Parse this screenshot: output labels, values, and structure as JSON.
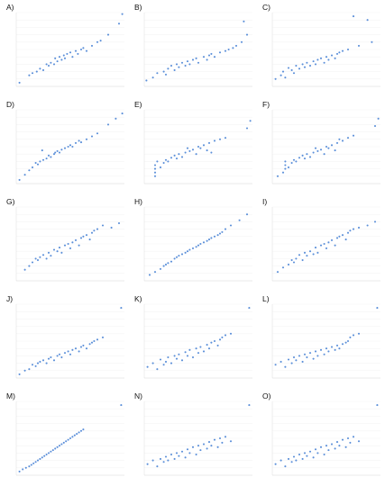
{
  "colors": {
    "point": "#5b8fd9",
    "grid": "#ececec"
  },
  "chart_data": [
    {
      "id": "A",
      "type": "scatter",
      "label": "A)",
      "xlabel": "",
      "ylabel": "",
      "grid": true,
      "xlim": [
        0,
        100
      ],
      "ylim": [
        0,
        100
      ],
      "x": [
        3,
        12,
        15,
        19,
        22,
        25,
        28,
        30,
        32,
        35,
        36,
        38,
        40,
        42,
        44,
        45,
        47,
        50,
        52,
        55,
        57,
        60,
        62,
        65,
        70,
        75,
        78,
        85,
        95,
        98
      ],
      "y": [
        5,
        15,
        18,
        20,
        24,
        22,
        30,
        28,
        32,
        30,
        38,
        34,
        40,
        36,
        42,
        38,
        44,
        46,
        40,
        48,
        44,
        50,
        52,
        48,
        55,
        60,
        62,
        70,
        85,
        98
      ]
    },
    {
      "id": "B",
      "type": "scatter",
      "label": "B)",
      "xlabel": "",
      "ylabel": "",
      "grid": true,
      "xlim": [
        0,
        100
      ],
      "ylim": [
        0,
        100
      ],
      "x": [
        2,
        8,
        12,
        18,
        20,
        22,
        25,
        28,
        30,
        32,
        35,
        38,
        40,
        42,
        45,
        48,
        50,
        55,
        58,
        60,
        62,
        65,
        70,
        75,
        78,
        82,
        85,
        90,
        92,
        95
      ],
      "y": [
        8,
        12,
        18,
        20,
        16,
        24,
        28,
        22,
        30,
        26,
        32,
        28,
        34,
        30,
        36,
        38,
        32,
        40,
        36,
        42,
        44,
        40,
        46,
        48,
        50,
        52,
        55,
        60,
        88,
        70
      ]
    },
    {
      "id": "C",
      "type": "scatter",
      "label": "C)",
      "xlabel": "",
      "ylabel": "",
      "grid": true,
      "xlim": [
        0,
        100
      ],
      "ylim": [
        0,
        100
      ],
      "x": [
        3,
        8,
        10,
        12,
        15,
        18,
        20,
        22,
        25,
        28,
        30,
        32,
        35,
        38,
        40,
        42,
        45,
        48,
        50,
        52,
        55,
        58,
        60,
        62,
        65,
        70,
        75,
        80,
        88,
        92
      ],
      "y": [
        10,
        15,
        20,
        12,
        25,
        22,
        18,
        28,
        24,
        30,
        26,
        32,
        28,
        34,
        30,
        36,
        38,
        32,
        40,
        36,
        42,
        38,
        44,
        46,
        48,
        50,
        95,
        55,
        90,
        60
      ]
    },
    {
      "id": "D",
      "type": "scatter",
      "label": "D)",
      "xlabel": "",
      "ylabel": "",
      "grid": true,
      "xlim": [
        0,
        100
      ],
      "ylim": [
        0,
        100
      ],
      "x": [
        3,
        8,
        12,
        15,
        18,
        20,
        22,
        24,
        25,
        28,
        30,
        32,
        35,
        36,
        38,
        40,
        42,
        45,
        48,
        50,
        52,
        55,
        58,
        60,
        65,
        70,
        75,
        85,
        92,
        98
      ],
      "y": [
        5,
        12,
        18,
        22,
        28,
        26,
        30,
        45,
        32,
        34,
        38,
        36,
        40,
        42,
        44,
        42,
        46,
        48,
        50,
        52,
        50,
        55,
        58,
        56,
        60,
        64,
        68,
        80,
        88,
        95
      ]
    },
    {
      "id": "E",
      "type": "scatter",
      "label": "E)",
      "xlabel": "",
      "ylabel": "",
      "grid": true,
      "xlim": [
        0,
        100
      ],
      "ylim": [
        0,
        100
      ],
      "x": [
        10,
        10,
        10,
        10,
        12,
        15,
        18,
        20,
        22,
        25,
        28,
        30,
        32,
        35,
        38,
        40,
        42,
        45,
        48,
        50,
        52,
        55,
        58,
        60,
        62,
        65,
        70,
        75,
        95,
        98
      ],
      "y": [
        10,
        15,
        20,
        25,
        30,
        22,
        28,
        32,
        30,
        35,
        38,
        34,
        40,
        36,
        42,
        48,
        44,
        46,
        40,
        50,
        48,
        52,
        45,
        55,
        42,
        58,
        60,
        62,
        75,
        85
      ]
    },
    {
      "id": "F",
      "type": "scatter",
      "label": "F)",
      "xlabel": "",
      "ylabel": "",
      "grid": true,
      "xlim": [
        0,
        100
      ],
      "ylim": [
        0,
        100
      ],
      "x": [
        5,
        10,
        12,
        12,
        12,
        15,
        18,
        20,
        22,
        25,
        28,
        30,
        32,
        35,
        38,
        40,
        42,
        45,
        48,
        50,
        52,
        55,
        58,
        60,
        62,
        65,
        70,
        75,
        95,
        98
      ],
      "y": [
        10,
        15,
        20,
        25,
        30,
        22,
        28,
        32,
        30,
        35,
        38,
        34,
        40,
        36,
        42,
        48,
        44,
        46,
        40,
        50,
        48,
        52,
        45,
        55,
        60,
        58,
        62,
        65,
        78,
        88
      ]
    },
    {
      "id": "G",
      "type": "scatter",
      "label": "G)",
      "xlabel": "",
      "ylabel": "",
      "grid": true,
      "xlim": [
        0,
        100
      ],
      "ylim": [
        0,
        100
      ],
      "x": [
        8,
        12,
        15,
        18,
        20,
        22,
        25,
        28,
        30,
        32,
        35,
        38,
        40,
        42,
        45,
        48,
        50,
        52,
        55,
        58,
        60,
        62,
        65,
        68,
        70,
        72,
        75,
        80,
        88,
        95
      ],
      "y": [
        15,
        20,
        25,
        30,
        28,
        32,
        35,
        30,
        38,
        34,
        42,
        40,
        45,
        38,
        48,
        50,
        44,
        52,
        55,
        48,
        58,
        60,
        62,
        56,
        65,
        68,
        70,
        75,
        72,
        78
      ]
    },
    {
      "id": "H",
      "type": "scatter",
      "label": "H)",
      "xlabel": "",
      "ylabel": "",
      "grid": true,
      "xlim": [
        0,
        100
      ],
      "ylim": [
        0,
        100
      ],
      "x": [
        5,
        10,
        15,
        18,
        20,
        22,
        25,
        28,
        30,
        32,
        35,
        38,
        40,
        42,
        45,
        48,
        50,
        52,
        55,
        58,
        60,
        62,
        65,
        68,
        70,
        72,
        75,
        80,
        88,
        95
      ],
      "y": [
        8,
        12,
        16,
        20,
        22,
        24,
        26,
        30,
        32,
        34,
        36,
        38,
        40,
        42,
        44,
        46,
        48,
        50,
        52,
        54,
        56,
        58,
        60,
        62,
        64,
        66,
        70,
        75,
        82,
        90
      ]
    },
    {
      "id": "I",
      "type": "scatter",
      "label": "I)",
      "xlabel": "",
      "ylabel": "",
      "grid": true,
      "xlim": [
        0,
        100
      ],
      "ylim": [
        0,
        100
      ],
      "x": [
        5,
        10,
        15,
        18,
        20,
        22,
        25,
        28,
        30,
        32,
        35,
        38,
        40,
        42,
        45,
        48,
        50,
        52,
        55,
        58,
        60,
        62,
        65,
        68,
        70,
        72,
        75,
        80,
        88,
        95
      ],
      "y": [
        12,
        18,
        22,
        28,
        25,
        30,
        35,
        28,
        38,
        34,
        40,
        36,
        45,
        38,
        48,
        50,
        44,
        52,
        55,
        48,
        58,
        60,
        62,
        56,
        65,
        68,
        70,
        72,
        75,
        80
      ]
    },
    {
      "id": "J",
      "type": "scatter",
      "label": "J)",
      "xlabel": "",
      "ylabel": "",
      "grid": true,
      "xlim": [
        0,
        100
      ],
      "ylim": [
        0,
        100
      ],
      "x": [
        3,
        8,
        12,
        15,
        18,
        20,
        22,
        25,
        28,
        30,
        32,
        35,
        38,
        40,
        42,
        45,
        48,
        50,
        52,
        55,
        58,
        60,
        62,
        65,
        68,
        70,
        72,
        75,
        80,
        97
      ],
      "y": [
        5,
        10,
        12,
        18,
        16,
        20,
        22,
        24,
        20,
        26,
        28,
        24,
        30,
        32,
        28,
        34,
        36,
        32,
        38,
        40,
        36,
        42,
        44,
        40,
        46,
        48,
        50,
        52,
        55,
        95
      ]
    },
    {
      "id": "K",
      "type": "scatter",
      "label": "K)",
      "xlabel": "",
      "ylabel": "",
      "grid": true,
      "xlim": [
        0,
        100
      ],
      "ylim": [
        0,
        100
      ],
      "x": [
        3,
        8,
        12,
        15,
        18,
        20,
        22,
        25,
        28,
        30,
        32,
        35,
        38,
        40,
        42,
        45,
        48,
        50,
        52,
        55,
        58,
        60,
        62,
        65,
        68,
        70,
        72,
        75,
        80,
        97
      ],
      "y": [
        15,
        20,
        12,
        25,
        18,
        22,
        28,
        20,
        30,
        26,
        32,
        24,
        35,
        30,
        38,
        28,
        40,
        34,
        42,
        36,
        45,
        40,
        48,
        50,
        44,
        52,
        55,
        58,
        60,
        95
      ]
    },
    {
      "id": "L",
      "type": "scatter",
      "label": "L)",
      "xlabel": "",
      "ylabel": "",
      "grid": true,
      "xlim": [
        0,
        100
      ],
      "ylim": [
        0,
        100
      ],
      "x": [
        3,
        8,
        12,
        15,
        18,
        20,
        22,
        25,
        28,
        30,
        32,
        35,
        38,
        40,
        42,
        45,
        48,
        50,
        52,
        55,
        58,
        60,
        62,
        65,
        68,
        70,
        72,
        75,
        80,
        97
      ],
      "y": [
        18,
        22,
        15,
        25,
        20,
        28,
        24,
        30,
        22,
        32,
        28,
        34,
        26,
        36,
        30,
        38,
        32,
        40,
        36,
        42,
        38,
        44,
        40,
        46,
        48,
        50,
        55,
        58,
        60,
        95
      ]
    },
    {
      "id": "M",
      "type": "scatter",
      "label": "M)",
      "xlabel": "",
      "ylabel": "",
      "grid": true,
      "xlim": [
        0,
        100
      ],
      "ylim": [
        0,
        100
      ],
      "x": [
        3,
        6,
        9,
        12,
        14,
        16,
        18,
        20,
        22,
        24,
        26,
        28,
        30,
        32,
        34,
        36,
        38,
        40,
        42,
        44,
        46,
        48,
        50,
        52,
        54,
        56,
        58,
        60,
        62,
        97
      ],
      "y": [
        5,
        8,
        10,
        12,
        14,
        16,
        18,
        20,
        22,
        24,
        26,
        28,
        30,
        32,
        34,
        36,
        38,
        40,
        42,
        44,
        46,
        48,
        50,
        52,
        54,
        56,
        58,
        60,
        62,
        95
      ]
    },
    {
      "id": "N",
      "type": "scatter",
      "label": "N)",
      "xlabel": "",
      "ylabel": "",
      "grid": true,
      "xlim": [
        0,
        100
      ],
      "ylim": [
        0,
        100
      ],
      "x": [
        3,
        8,
        12,
        15,
        18,
        20,
        22,
        25,
        28,
        30,
        32,
        35,
        38,
        40,
        42,
        45,
        48,
        50,
        52,
        55,
        58,
        60,
        62,
        65,
        68,
        70,
        72,
        75,
        80,
        97
      ],
      "y": [
        15,
        20,
        12,
        22,
        18,
        25,
        20,
        28,
        22,
        30,
        26,
        32,
        24,
        35,
        30,
        38,
        28,
        40,
        34,
        42,
        36,
        45,
        40,
        48,
        38,
        50,
        44,
        52,
        46,
        95
      ]
    },
    {
      "id": "O",
      "type": "scatter",
      "label": "O)",
      "xlabel": "",
      "ylabel": "",
      "grid": true,
      "xlim": [
        0,
        100
      ],
      "ylim": [
        0,
        100
      ],
      "x": [
        3,
        8,
        12,
        15,
        18,
        20,
        22,
        25,
        28,
        30,
        32,
        35,
        38,
        40,
        42,
        45,
        48,
        50,
        52,
        55,
        58,
        60,
        62,
        65,
        68,
        70,
        72,
        75,
        80,
        97
      ],
      "y": [
        15,
        20,
        12,
        22,
        18,
        25,
        20,
        28,
        22,
        30,
        26,
        32,
        24,
        35,
        30,
        38,
        28,
        40,
        34,
        42,
        36,
        45,
        40,
        48,
        38,
        50,
        44,
        52,
        46,
        95
      ]
    }
  ]
}
